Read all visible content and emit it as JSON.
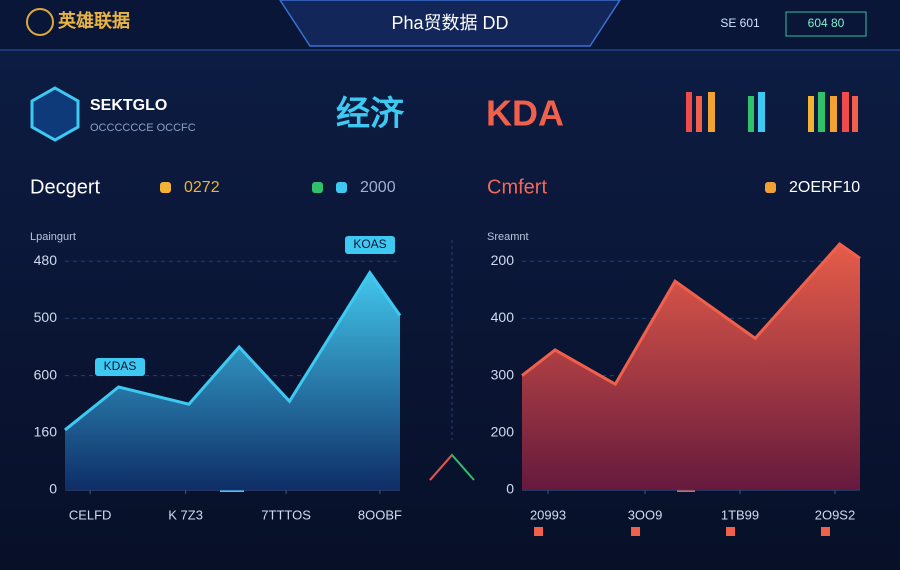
{
  "header": {
    "logo": "英雄联据",
    "title": "Pha贸数据 DD",
    "status": [
      "SE 601",
      "604 80"
    ]
  },
  "brand": {
    "name": "SEKTGLO",
    "subtitle": "OCCCCCCE OCCFC"
  },
  "tabs": [
    "经济",
    "KDA"
  ],
  "chart_data": [
    {
      "type": "area",
      "title": "Decgert",
      "ylabel": "Lpaingurt",
      "legend": [
        {
          "label": "0272",
          "colors": [
            "#f2b233"
          ]
        },
        {
          "label": "2000",
          "colors": [
            "#2fc26a",
            "#3ec9f2"
          ]
        }
      ],
      "x": [
        0,
        1.6,
        3.7,
        5.2,
        6.7,
        9.1,
        10
      ],
      "values": [
        1.05,
        1.8,
        1.5,
        2.5,
        1.55,
        3.8,
        3.05
      ],
      "color": "#3ec9f2",
      "xlim": [
        0,
        10
      ],
      "ylim": [
        0,
        4.5
      ],
      "yticks": [
        0,
        1,
        2,
        3,
        4
      ],
      "ytick_labels": [
        "0",
        "160",
        "600",
        "500",
        "480"
      ],
      "xticks": [
        0.75,
        3.6,
        6.6,
        9.4
      ],
      "xtick_labels": [
        "CELFD",
        "K 7Z3",
        "7TTTOS",
        "8OOBF"
      ],
      "annotations": [
        "KDAS",
        "KOAS"
      ],
      "grid": true
    },
    {
      "type": "area",
      "title": "Cmfert",
      "ylabel": "Sreamnt",
      "legend": [
        {
          "label": "2OERF10",
          "colors": [
            "#f2a233"
          ]
        }
      ],
      "x": [
        0,
        0.98,
        2.76,
        4.53,
        6.9,
        9.4,
        10
      ],
      "values": [
        2.0,
        2.45,
        1.85,
        3.65,
        2.65,
        4.3,
        4.05
      ],
      "color": "#f0604a",
      "xlim": [
        0,
        10
      ],
      "ylim": [
        0,
        4.5
      ],
      "yticks": [
        0,
        1,
        2,
        3,
        4
      ],
      "ytick_labels": [
        "0",
        "200",
        "300",
        "400",
        "200"
      ],
      "xticks": [
        0.77,
        3.64,
        6.45,
        9.26
      ],
      "xtick_labels": [
        "20993",
        "3OO9",
        "1TB99",
        "2O9S2"
      ],
      "grid": true
    }
  ]
}
